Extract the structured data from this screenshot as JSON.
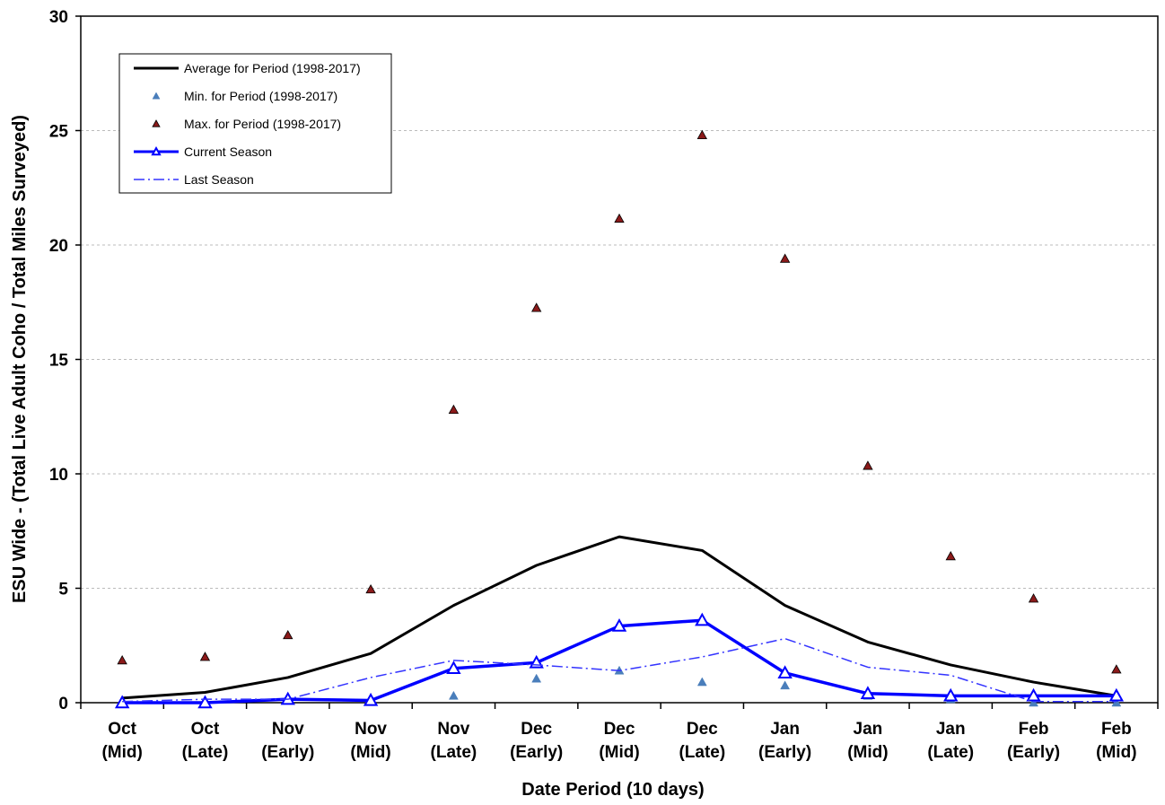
{
  "chart_data": {
    "type": "line",
    "x_label": "Date Period (10 days)",
    "y_label": "ESU Wide - (Total Live Adult Coho / Total Miles Surveyed)",
    "categories": [
      "Oct (Mid)",
      "Oct (Late)",
      "Nov (Early)",
      "Nov (Mid)",
      "Nov (Late)",
      "Dec (Early)",
      "Dec (Mid)",
      "Dec (Late)",
      "Jan (Early)",
      "Jan (Mid)",
      "Jan (Late)",
      "Feb (Early)",
      "Feb (Mid)"
    ],
    "ylim": [
      0,
      30
    ],
    "yticks": [
      0,
      5,
      10,
      15,
      20,
      25,
      30
    ],
    "grid": true,
    "legend": "upper left",
    "series": [
      {
        "name": "Average for Period (1998-2017)",
        "color": "#000000",
        "style": "line",
        "values": [
          0.2,
          0.45,
          1.1,
          2.15,
          4.25,
          6.0,
          7.25,
          6.65,
          4.25,
          2.65,
          1.65,
          0.9,
          0.3
        ]
      },
      {
        "name": "Min. for Period (1998-2017)",
        "color": "#4a7ebb",
        "style": "marker",
        "values": [
          0,
          0,
          0.1,
          0.1,
          0.3,
          1.05,
          1.4,
          0.9,
          0.75,
          0.3,
          0.15,
          0,
          0
        ]
      },
      {
        "name": "Max. for Period (1998-2017)",
        "color": "#8b1a1a",
        "style": "marker",
        "values": [
          1.85,
          2.0,
          2.95,
          4.95,
          12.8,
          17.25,
          21.15,
          24.8,
          19.4,
          10.35,
          6.4,
          4.55,
          1.45
        ]
      },
      {
        "name": "Current Season",
        "color": "#0000ff",
        "style": "line-marker",
        "values": [
          0,
          0,
          0.15,
          0.1,
          1.5,
          1.75,
          3.35,
          3.6,
          1.3,
          0.4,
          0.3,
          0.3,
          0.3
        ]
      },
      {
        "name": "Last Season",
        "color": "#3333ff",
        "style": "dash-dot",
        "values": [
          0.05,
          0.15,
          0.15,
          1.1,
          1.85,
          1.65,
          1.4,
          2.0,
          2.8,
          1.55,
          1.2,
          0.05,
          0.05
        ]
      }
    ]
  }
}
